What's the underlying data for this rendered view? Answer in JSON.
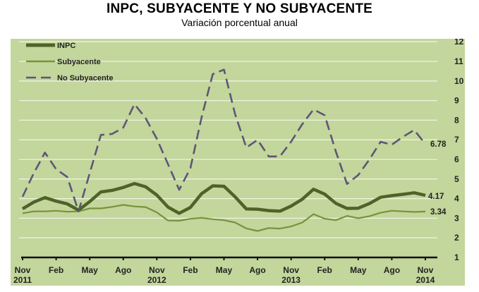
{
  "header": {
    "title": "INPC, SUBYACENTE Y NO SUBYACENTE",
    "subtitle": "Variación porcentual anual"
  },
  "colors": {
    "background": "#c3d69b",
    "gridline": "#eef3e2",
    "inpc": "#4f6228",
    "subyacente": "#77933c",
    "no_subyacente": "#5f5578",
    "axis": "#111111"
  },
  "chart_data": {
    "type": "line",
    "title": "INPC, SUBYACENTE Y NO SUBYACENTE",
    "subtitle": "Variación porcentual anual",
    "xlabel": "",
    "ylabel": "",
    "ylim": [
      1,
      12
    ],
    "y_ticks": [
      1,
      2,
      3,
      4,
      5,
      6,
      7,
      8,
      9,
      10,
      11,
      12
    ],
    "y_axis_position": "right",
    "grid": true,
    "legend_position": "top-left",
    "x": [
      "Nov 2011",
      "Dic 2011",
      "Ene 2012",
      "Feb 2012",
      "Mar 2012",
      "Abr 2012",
      "May 2012",
      "Jun 2012",
      "Jul 2012",
      "Ago 2012",
      "Sep 2012",
      "Oct 2012",
      "Nov 2012",
      "Dic 2012",
      "Ene 2013",
      "Feb 2013",
      "Mar 2013",
      "Abr 2013",
      "May 2013",
      "Jun 2013",
      "Jul 2013",
      "Ago 2013",
      "Sep 2013",
      "Oct 2013",
      "Nov 2013",
      "Dic 2013",
      "Ene 2014",
      "Feb 2014",
      "Mar 2014",
      "Abr 2014",
      "May 2014",
      "Jun 2014",
      "Jul 2014",
      "Ago 2014",
      "Sep 2014",
      "Oct 2014",
      "Nov 2014"
    ],
    "x_tick_labels": [
      {
        "index": 0,
        "label": "Nov",
        "year": "2011"
      },
      {
        "index": 3,
        "label": "Feb",
        "year": ""
      },
      {
        "index": 6,
        "label": "May",
        "year": ""
      },
      {
        "index": 9,
        "label": "Ago",
        "year": ""
      },
      {
        "index": 12,
        "label": "Nov",
        "year": "2012"
      },
      {
        "index": 15,
        "label": "Feb",
        "year": ""
      },
      {
        "index": 18,
        "label": "May",
        "year": ""
      },
      {
        "index": 21,
        "label": "Ago",
        "year": ""
      },
      {
        "index": 24,
        "label": "Nov",
        "year": "2013"
      },
      {
        "index": 27,
        "label": "Feb",
        "year": ""
      },
      {
        "index": 30,
        "label": "May",
        "year": ""
      },
      {
        "index": 33,
        "label": "Ago",
        "year": ""
      },
      {
        "index": 36,
        "label": "Nov",
        "year": "2014"
      }
    ],
    "series": [
      {
        "name": "INPC",
        "style": "solid-thick",
        "color": "#4f6228",
        "values": [
          3.48,
          3.82,
          4.05,
          3.87,
          3.73,
          3.41,
          3.85,
          4.34,
          4.42,
          4.57,
          4.77,
          4.6,
          4.18,
          3.57,
          3.25,
          3.55,
          4.25,
          4.65,
          4.63,
          4.09,
          3.47,
          3.46,
          3.39,
          3.36,
          3.62,
          3.97,
          4.48,
          4.23,
          3.76,
          3.5,
          3.51,
          3.75,
          4.07,
          4.15,
          4.22,
          4.3,
          4.17
        ],
        "end_label": "4.17"
      },
      {
        "name": "Subyacente",
        "style": "solid-thin",
        "color": "#77933c",
        "values": [
          3.25,
          3.35,
          3.35,
          3.38,
          3.33,
          3.35,
          3.5,
          3.5,
          3.58,
          3.68,
          3.6,
          3.57,
          3.3,
          2.88,
          2.87,
          2.97,
          3.02,
          2.95,
          2.9,
          2.78,
          2.48,
          2.35,
          2.5,
          2.47,
          2.58,
          2.78,
          3.21,
          2.98,
          2.9,
          3.12,
          3.0,
          3.1,
          3.28,
          3.38,
          3.35,
          3.32,
          3.34
        ],
        "end_label": "3.34"
      },
      {
        "name": "No Subyacente",
        "style": "dashed",
        "color": "#5f5578",
        "values": [
          4.1,
          5.3,
          6.35,
          5.5,
          5.1,
          3.35,
          5.3,
          7.25,
          7.3,
          7.62,
          8.82,
          8.1,
          7.05,
          5.75,
          4.45,
          5.55,
          8.15,
          10.35,
          10.58,
          8.3,
          6.6,
          7.0,
          6.15,
          6.15,
          6.9,
          7.8,
          8.55,
          8.25,
          6.4,
          4.75,
          5.2,
          6.0,
          6.9,
          6.75,
          7.15,
          7.5,
          6.78
        ],
        "end_label": "6.78"
      }
    ]
  },
  "legend": {
    "items": [
      {
        "label": "INPC"
      },
      {
        "label": "Subyacente"
      },
      {
        "label": "No Subyacente"
      }
    ]
  }
}
